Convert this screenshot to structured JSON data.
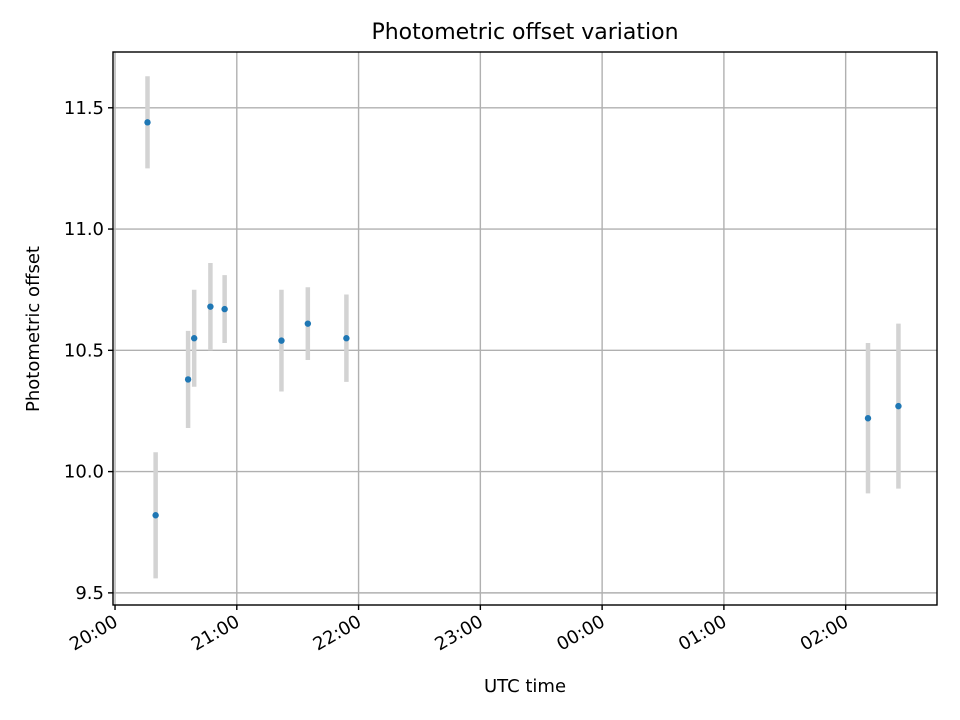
{
  "chart_data": {
    "type": "scatter",
    "title": "Photometric offset variation",
    "xlabel": "UTC time",
    "ylabel": "Photometric offset",
    "x_axis_kind": "time",
    "x_ticks": [
      "20:00",
      "21:00",
      "22:00",
      "23:00",
      "00:00",
      "01:00",
      "02:00"
    ],
    "y_ticks": [
      "9.5",
      "10.0",
      "10.5",
      "11.0",
      "11.5"
    ],
    "xlim": [
      "19:59",
      "02:45"
    ],
    "ylim": [
      9.45,
      11.73
    ],
    "grid": true,
    "colors": {
      "point": "#1f77b4",
      "errorbar": "#d3d3d3",
      "grid": "#b0b0b0"
    },
    "points": [
      {
        "x": "20:16",
        "y": 11.44,
        "err": 0.19
      },
      {
        "x": "20:20",
        "y": 9.82,
        "err": 0.26
      },
      {
        "x": "20:36",
        "y": 10.38,
        "err": 0.2
      },
      {
        "x": "20:39",
        "y": 10.55,
        "err": 0.2
      },
      {
        "x": "20:47",
        "y": 10.68,
        "err": 0.18
      },
      {
        "x": "20:54",
        "y": 10.67,
        "err": 0.14
      },
      {
        "x": "21:22",
        "y": 10.54,
        "err": 0.21
      },
      {
        "x": "21:35",
        "y": 10.61,
        "err": 0.15
      },
      {
        "x": "21:54",
        "y": 10.55,
        "err": 0.18
      },
      {
        "x": "02:11",
        "y": 10.22,
        "err": 0.31
      },
      {
        "x": "02:26",
        "y": 10.27,
        "err": 0.34
      }
    ]
  }
}
